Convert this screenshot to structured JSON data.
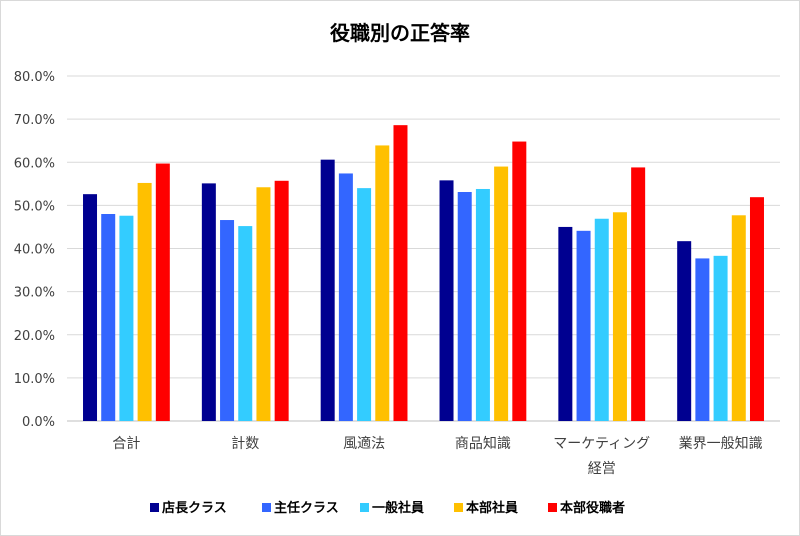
{
  "chart_data": {
    "type": "bar",
    "title": "役職別の正答率",
    "categories": [
      "合計",
      "計数",
      "風適法",
      "商品知識",
      "マーケティング経営",
      "業界一般知識"
    ],
    "category_lines": [
      [
        "合計"
      ],
      [
        "計数"
      ],
      [
        "風適法"
      ],
      [
        "商品知識"
      ],
      [
        "マーケティング",
        "経営"
      ],
      [
        "業界一般知識"
      ]
    ],
    "ylim": [
      0,
      80
    ],
    "yticks": [
      "0.0%",
      "10.0%",
      "20.0%",
      "30.0%",
      "40.0%",
      "50.0%",
      "60.0%",
      "70.0%",
      "80.0%"
    ],
    "grid": true,
    "legend_position": "bottom",
    "series": [
      {
        "name": "店長クラス",
        "color": "#000090",
        "values": [
          52.6,
          55.1,
          60.6,
          55.8,
          45.0,
          41.7
        ]
      },
      {
        "name": "主任クラス",
        "color": "#3366ff",
        "values": [
          48.0,
          46.6,
          57.4,
          53.1,
          44.1,
          37.7
        ]
      },
      {
        "name": "一般社員",
        "color": "#33ccff",
        "values": [
          47.6,
          45.2,
          54.0,
          53.8,
          46.9,
          38.3
        ]
      },
      {
        "name": "本部社員",
        "color": "#ffc000",
        "values": [
          55.2,
          54.2,
          63.9,
          59.0,
          48.4,
          47.7
        ]
      },
      {
        "name": "本部役職者",
        "color": "#ff0000",
        "values": [
          59.7,
          55.7,
          68.6,
          64.8,
          58.8,
          51.9
        ]
      }
    ]
  }
}
